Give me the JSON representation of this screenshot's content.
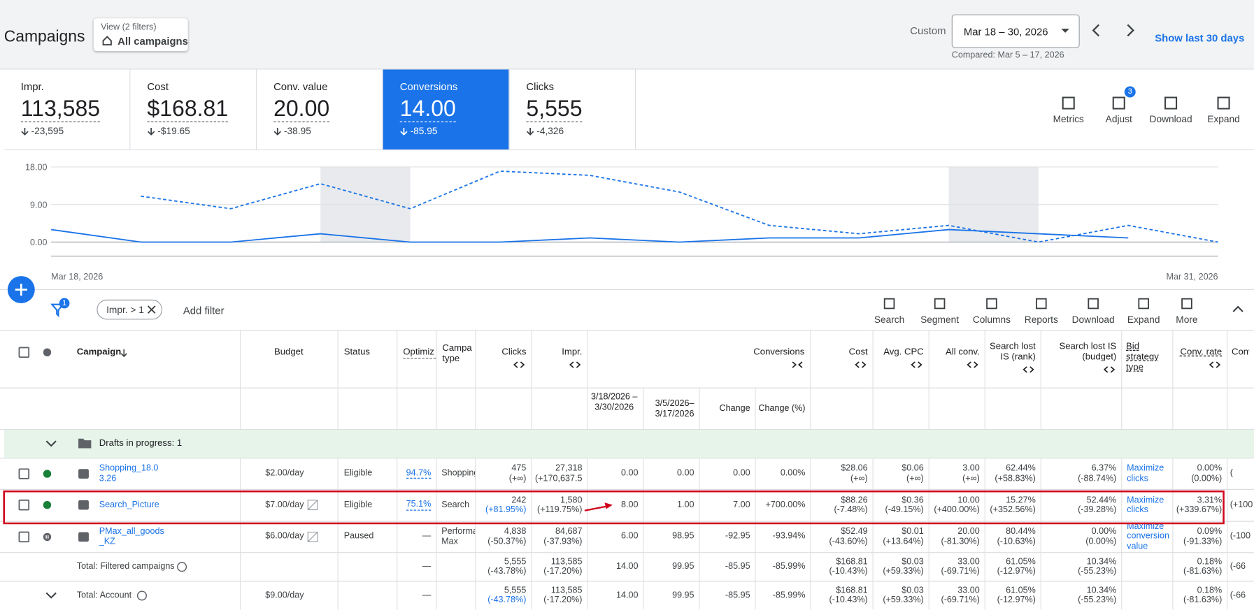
{
  "header": {
    "title": "Campaigns",
    "view_label": "View (2 filters)",
    "view_value": "All campaigns",
    "date_prefix": "Custom",
    "date_range": "Mar 18 – 30, 2026",
    "compared": "Compared: Mar 5 – 17, 2026",
    "show_last": "Show last 30 days"
  },
  "scorecards": [
    {
      "label": "Impr.",
      "value": "113,585",
      "change": "-23,595"
    },
    {
      "label": "Cost",
      "value": "$168.81",
      "change": "-$19.65"
    },
    {
      "label": "Conv. value",
      "value": "20.00",
      "change": "-38.95"
    },
    {
      "label": "Conversions",
      "value": "14.00",
      "change": "-85.95"
    },
    {
      "label": "Clicks",
      "value": "5,555",
      "change": "-4,326"
    }
  ],
  "tools": [
    "Metrics",
    "Adjust",
    "Download",
    "Expand"
  ],
  "adjust_badge": "3",
  "chart": {
    "type": "line",
    "categories": [
      "Mar 18, 2026",
      null,
      null,
      null,
      null,
      null,
      null,
      null,
      null,
      null,
      null,
      null,
      null,
      "Mar 31, 2026"
    ],
    "ylim": [
      0,
      18
    ],
    "yticks": [
      {
        "value": 0,
        "label": "0.00"
      },
      {
        "value": 9,
        "label": "9.00"
      },
      {
        "value": 18,
        "label": "18.00"
      }
    ],
    "grid": true,
    "series": [
      {
        "color": "#1a73e8",
        "dashed": false,
        "values": [
          3,
          0,
          0,
          2,
          0,
          0,
          1,
          0,
          1,
          1,
          3,
          2,
          1,
          null
        ]
      },
      {
        "color": "#1a73e8",
        "dashed": true,
        "values": [
          null,
          11,
          8,
          14,
          8,
          17,
          16,
          12,
          4,
          2,
          4,
          0,
          4,
          0
        ]
      }
    ]
  },
  "filter": {
    "badge": "1",
    "chip": "Impr. > 1",
    "add": "Add filter"
  },
  "table_tools": [
    "Search",
    "Segment",
    "Columns",
    "Reports",
    "Download",
    "Expand",
    "More"
  ],
  "table": {
    "columns": [
      "Campaign",
      "Budget",
      "Status",
      "Optimiz",
      "Campa type",
      "Clicks",
      "Impr.",
      null,
      null,
      null,
      null,
      "Cost",
      "Avg. CPC",
      "All conv.",
      "Search lost IS (rank)",
      "Search lost IS (budget)",
      "Bid strategy type",
      "Conv. rate",
      "Conv."
    ],
    "conversions_group": "Conversions",
    "subheaders": [
      "3/18/2026 – 3/30/2026",
      "3/5/2026– 3/17/2026",
      "Change",
      "Change (%)"
    ],
    "drafts": "Drafts in progress: 1",
    "rows": [
      [
        "Shopping_18.03.26",
        "$2.00/day",
        "Eligible",
        "94.7%",
        "Shopping",
        {
          "main": "475",
          "sub": "(+∞)"
        },
        {
          "main": "27,318",
          "sub": "(+170,637.5"
        },
        "0.00",
        "0.00",
        "0.00",
        "0.00%",
        {
          "main": "$28.06",
          "sub": "(+∞)"
        },
        {
          "main": "$0.06",
          "sub": "(+∞)"
        },
        {
          "main": "3.00",
          "sub": "(+∞)"
        },
        {
          "main": "62.44%",
          "sub": "(+58.83%)"
        },
        {
          "main": "6.37%",
          "sub": "(-88.74%)"
        },
        "Maximize clicks",
        {
          "main": "0.00%",
          "sub": "(0.00%)"
        },
        "("
      ],
      [
        "Search_Picture",
        "$7.00/day",
        "Eligible",
        "75.1%",
        "Search",
        {
          "main": "242",
          "sub": "(+81.95%)"
        },
        {
          "main": "1,580",
          "sub": "(+119.75%)"
        },
        "8.00",
        "1.00",
        "7.00",
        "+700.00%",
        {
          "main": "$88.26",
          "sub": "(-7.48%)"
        },
        {
          "main": "$0.36",
          "sub": "(-49.15%)"
        },
        {
          "main": "10.00",
          "sub": "(+400.00%)"
        },
        {
          "main": "15.27%",
          "sub": "(+352.56%)"
        },
        {
          "main": "52.44%",
          "sub": "(-39.28%)"
        },
        "Maximize clicks",
        {
          "main": "3.31%",
          "sub": "(+339.67%)"
        },
        "(+100"
      ],
      [
        "PMax_all_goods_KZ",
        "$6.00/day",
        "Paused",
        "—",
        "Performa Max",
        {
          "main": "4,838",
          "sub": "(-50.37%)"
        },
        {
          "main": "84,687",
          "sub": "(-37.93%)"
        },
        "6.00",
        "98.95",
        "-92.95",
        "-93.94%",
        {
          "main": "$52.49",
          "sub": "(-43.60%)"
        },
        {
          "main": "$0.01",
          "sub": "(+13.64%)"
        },
        {
          "main": "20.00",
          "sub": "(-81.30%)"
        },
        {
          "main": "80.44%",
          "sub": "(-10.63%)"
        },
        {
          "main": "0.00%",
          "sub": "(0.00%)"
        },
        "Maximize conversion value",
        {
          "main": "0.09%",
          "sub": "(-91.33%)"
        },
        "(-100"
      ]
    ],
    "totals": [
      [
        "Total: Filtered campaigns",
        null,
        null,
        "—",
        null,
        {
          "main": "5,555",
          "sub": "(-43.78%)"
        },
        {
          "main": "113,585",
          "sub": "(-17.20%)"
        },
        "14.00",
        "99.95",
        "-85.95",
        "-85.99%",
        {
          "main": "$168.81",
          "sub": "(-10.43%)"
        },
        {
          "main": "$0.03",
          "sub": "(+59.33%)"
        },
        {
          "main": "33.00",
          "sub": "(-69.71%)"
        },
        {
          "main": "61.05%",
          "sub": "(-12.97%)"
        },
        {
          "main": "10.34%",
          "sub": "(-55.23%)"
        },
        null,
        {
          "main": "0.18%",
          "sub": "(-81.63%)"
        },
        "(-66"
      ],
      [
        "Total: Account",
        "$9.00/day",
        null,
        "—",
        null,
        {
          "main": "5,555",
          "sub": "(-43.78%)"
        },
        {
          "main": "113,585",
          "sub": "(-17.20%)"
        },
        "14.00",
        "99.95",
        "-85.95",
        "-85.99%",
        {
          "main": "$168.81",
          "sub": "(-10.43%)"
        },
        {
          "main": "$0.03",
          "sub": "(+59.33%)"
        },
        {
          "main": "33.00",
          "sub": "(-69.71%)"
        },
        {
          "main": "61.05%",
          "sub": "(-12.97%)"
        },
        {
          "main": "10.34%",
          "sub": "(-55.23%)"
        },
        null,
        {
          "main": "0.18%",
          "sub": "(-81.63%)"
        },
        "(-66"
      ]
    ]
  }
}
